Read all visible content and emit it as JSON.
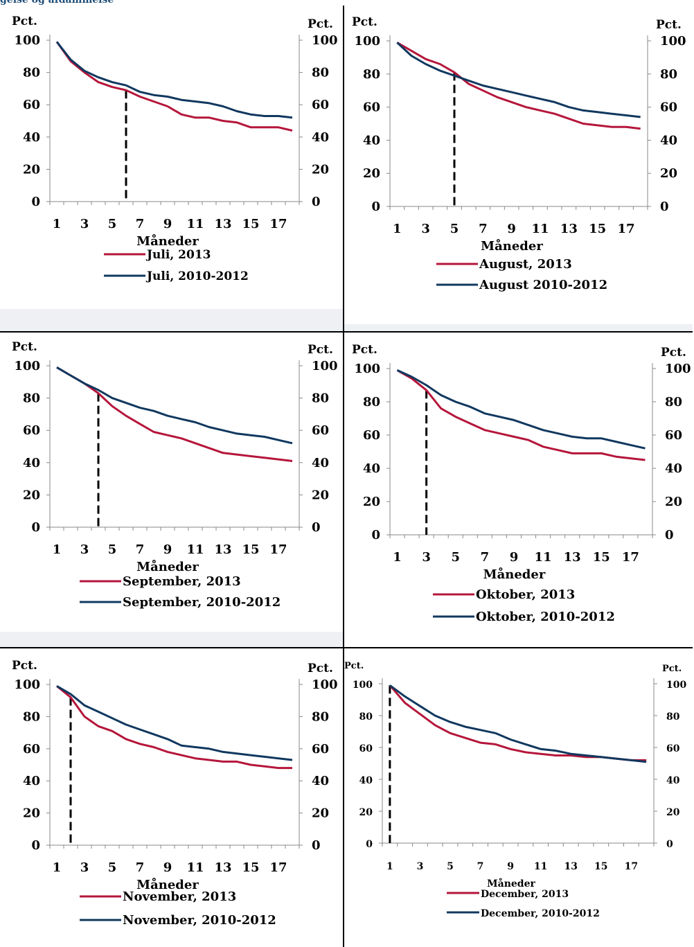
{
  "header": {
    "caption": "gelse og afdammelse"
  },
  "chart_data": [
    {
      "type": "line",
      "left_unit": "Pct.",
      "right_unit": "Pct.",
      "xlabel": "Måneder",
      "x": [
        1,
        2,
        3,
        4,
        5,
        6,
        7,
        8,
        9,
        10,
        11,
        12,
        13,
        14,
        15,
        16,
        17,
        18
      ],
      "x_ticks": [
        "1",
        "3",
        "5",
        "7",
        "9",
        "11",
        "13",
        "15",
        "17"
      ],
      "y_ticks": [
        "0",
        "20",
        "40",
        "60",
        "80",
        "100"
      ],
      "ylim": [
        0,
        100
      ],
      "marker_month": 6,
      "series": [
        {
          "name": "Juli, 2013",
          "color": "#b5163b",
          "values": [
            99,
            87,
            80,
            74,
            71,
            69,
            65,
            62,
            59,
            54,
            52,
            52,
            50,
            49,
            46,
            46,
            46,
            44
          ]
        },
        {
          "name": "Juli, 2010-2012",
          "color": "#10385f",
          "values": [
            99,
            88,
            81,
            77,
            74,
            72,
            68,
            66,
            65,
            63,
            62,
            61,
            59,
            56,
            54,
            53,
            53,
            52
          ]
        }
      ]
    },
    {
      "type": "line",
      "left_unit": "Pct.",
      "right_unit": "Pct.",
      "xlabel": "Måneder",
      "x": [
        1,
        2,
        3,
        4,
        5,
        6,
        7,
        8,
        9,
        10,
        11,
        12,
        13,
        14,
        15,
        16,
        17,
        18
      ],
      "x_ticks": [
        "1",
        "3",
        "5",
        "7",
        "9",
        "11",
        "13",
        "15",
        "17"
      ],
      "y_ticks": [
        "0",
        "20",
        "40",
        "60",
        "80",
        "100"
      ],
      "ylim": [
        0,
        100
      ],
      "marker_month": 5,
      "series": [
        {
          "name": "August, 2013",
          "color": "#b5163b",
          "values": [
            99,
            94,
            89,
            86,
            81,
            74,
            70,
            66,
            63,
            60,
            58,
            56,
            53,
            50,
            49,
            48,
            48,
            47
          ]
        },
        {
          "name": "August 2010-2012",
          "color": "#10385f",
          "values": [
            99,
            91,
            86,
            82,
            79,
            76,
            73,
            71,
            69,
            67,
            65,
            63,
            60,
            58,
            57,
            56,
            55,
            54
          ]
        }
      ]
    },
    {
      "type": "line",
      "left_unit": "Pct.",
      "right_unit": "Pct.",
      "xlabel": "Måneder",
      "x": [
        1,
        2,
        3,
        4,
        5,
        6,
        7,
        8,
        9,
        10,
        11,
        12,
        13,
        14,
        15,
        16,
        17,
        18
      ],
      "x_ticks": [
        "1",
        "3",
        "5",
        "7",
        "9",
        "11",
        "13",
        "15",
        "17"
      ],
      "y_ticks": [
        "0",
        "20",
        "40",
        "60",
        "80",
        "100"
      ],
      "ylim": [
        0,
        100
      ],
      "marker_month": 4,
      "series": [
        {
          "name": "September, 2013",
          "color": "#b5163b",
          "values": [
            99,
            94,
            89,
            83,
            75,
            69,
            64,
            59,
            57,
            55,
            52,
            49,
            46,
            45,
            44,
            43,
            42,
            41
          ]
        },
        {
          "name": "September, 2010-2012",
          "color": "#10385f",
          "values": [
            99,
            94,
            89,
            85,
            80,
            77,
            74,
            72,
            69,
            67,
            65,
            62,
            60,
            58,
            57,
            56,
            54,
            52
          ]
        }
      ]
    },
    {
      "type": "line",
      "left_unit": "Pct.",
      "right_unit": "Pct.",
      "xlabel": "Måneder",
      "x": [
        1,
        2,
        3,
        4,
        5,
        6,
        7,
        8,
        9,
        10,
        11,
        12,
        13,
        14,
        15,
        16,
        17,
        18
      ],
      "x_ticks": [
        "1",
        "3",
        "5",
        "7",
        "9",
        "11",
        "13",
        "15",
        "17"
      ],
      "y_ticks": [
        "0",
        "20",
        "40",
        "60",
        "80",
        "100"
      ],
      "ylim": [
        0,
        100
      ],
      "marker_month": 3,
      "series": [
        {
          "name": "Oktober, 2013",
          "color": "#b5163b",
          "values": [
            99,
            94,
            87,
            76,
            71,
            67,
            63,
            61,
            59,
            57,
            53,
            51,
            49,
            49,
            49,
            47,
            46,
            45
          ]
        },
        {
          "name": "Oktober, 2010-2012",
          "color": "#10385f",
          "values": [
            99,
            95,
            90,
            84,
            80,
            77,
            73,
            71,
            69,
            66,
            63,
            61,
            59,
            58,
            58,
            56,
            54,
            52
          ]
        }
      ]
    },
    {
      "type": "line",
      "left_unit": "Pct.",
      "right_unit": "Pct.",
      "xlabel": "Måneder",
      "x": [
        1,
        2,
        3,
        4,
        5,
        6,
        7,
        8,
        9,
        10,
        11,
        12,
        13,
        14,
        15,
        16,
        17,
        18
      ],
      "x_ticks": [
        "1",
        "3",
        "5",
        "7",
        "9",
        "11",
        "13",
        "15",
        "17"
      ],
      "y_ticks": [
        "0",
        "20",
        "40",
        "60",
        "80",
        "100"
      ],
      "ylim": [
        0,
        100
      ],
      "marker_month": 2,
      "series": [
        {
          "name": "November, 2013",
          "color": "#b5163b",
          "values": [
            99,
            92,
            80,
            74,
            71,
            66,
            63,
            61,
            58,
            56,
            54,
            53,
            52,
            52,
            50,
            49,
            48,
            48
          ]
        },
        {
          "name": "November, 2010-2012",
          "color": "#10385f",
          "values": [
            99,
            94,
            87,
            83,
            79,
            75,
            72,
            69,
            66,
            62,
            61,
            60,
            58,
            57,
            56,
            55,
            54,
            53
          ]
        }
      ]
    },
    {
      "type": "line",
      "left_unit": "Pct.",
      "right_unit": "Pct.",
      "xlabel": "Måneder",
      "x": [
        1,
        2,
        3,
        4,
        5,
        6,
        7,
        8,
        9,
        10,
        11,
        12,
        13,
        14,
        15,
        16,
        17,
        18
      ],
      "x_ticks": [
        "1",
        "3",
        "5",
        "7",
        "9",
        "11",
        "13",
        "15",
        "17"
      ],
      "y_ticks": [
        "0",
        "20",
        "40",
        "60",
        "80",
        "100"
      ],
      "ylim": [
        0,
        100
      ],
      "marker_month": 1,
      "series": [
        {
          "name": "December, 2013",
          "color": "#b5163b",
          "values": [
            99,
            88,
            81,
            74,
            69,
            66,
            63,
            62,
            59,
            57,
            56,
            55,
            55,
            54,
            54,
            53,
            52,
            52
          ]
        },
        {
          "name": "December, 2010-2012",
          "color": "#10385f",
          "values": [
            99,
            92,
            86,
            80,
            76,
            73,
            71,
            69,
            65,
            62,
            59,
            58,
            56,
            55,
            54,
            53,
            52,
            51
          ]
        }
      ]
    }
  ]
}
